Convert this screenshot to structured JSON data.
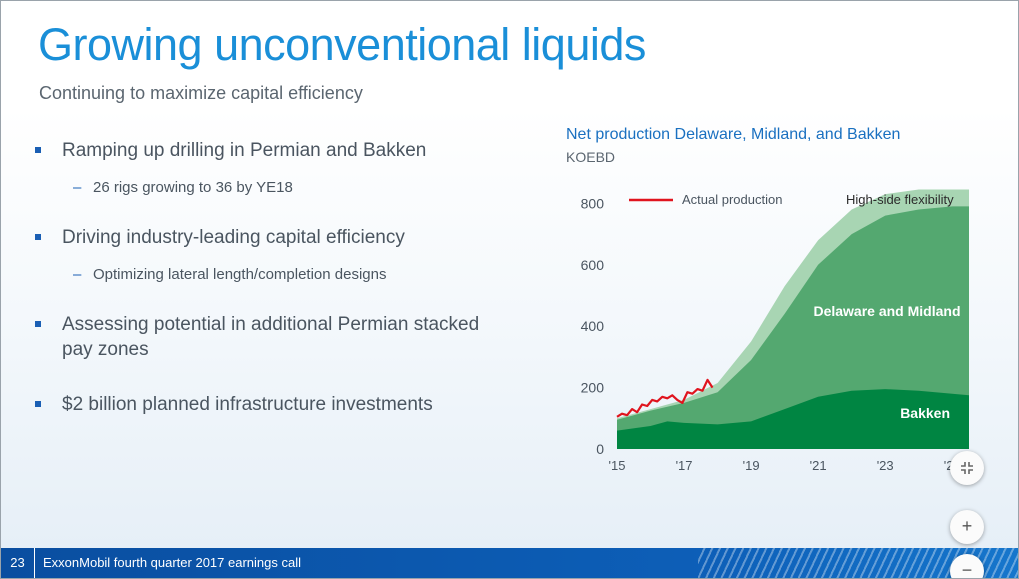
{
  "slide": {
    "title": "Growing unconventional liquids",
    "subtitle": "Continuing to maximize capital efficiency"
  },
  "bullets": [
    {
      "text": "Ramping up drilling in Permian and Bakken",
      "sub": "26 rigs growing to 36 by YE18"
    },
    {
      "text": "Driving industry-leading capital efficiency",
      "sub": "Optimizing lateral length/completion designs"
    },
    {
      "text": "Assessing potential in additional Permian stacked pay zones"
    },
    {
      "text": "$2 billion planned infrastructure investments"
    }
  ],
  "footer": {
    "page_number": "23",
    "text": "ExxonMobil fourth quarter 2017 earnings call"
  },
  "zoom_controls": {
    "collapse_icon": "collapse-arrows-icon",
    "zoom_in_icon": "plus-icon",
    "zoom_out_icon": "minus-icon"
  },
  "chart_data": {
    "type": "area",
    "title": "Net production Delaware, Midland, and Bakken",
    "unit": "KOEBD",
    "xlabel": "",
    "ylabel": "",
    "x_ticks": [
      "'15",
      "'17",
      "'19",
      "'21",
      "'23",
      "'25"
    ],
    "y_ticks": [
      0,
      200,
      400,
      600,
      800
    ],
    "ylim": [
      0,
      850
    ],
    "xlim": [
      2015,
      2025.5
    ],
    "legend": [
      "Actual production"
    ],
    "annotations": [
      "High-side flexibility",
      "Delaware and Midland",
      "Bakken"
    ],
    "colors": {
      "bakken": "#008542",
      "delaware_midland": "#54a870",
      "high_side": "#a8d5b3",
      "actual": "#e0141e"
    },
    "series": [
      {
        "name": "Bakken",
        "stack": "base",
        "x": [
          2015,
          2016,
          2016.5,
          2017,
          2018,
          2019,
          2020,
          2021,
          2022,
          2023,
          2024,
          2025,
          2025.5
        ],
        "y": [
          60,
          75,
          90,
          85,
          80,
          90,
          130,
          170,
          190,
          195,
          190,
          180,
          175
        ]
      },
      {
        "name": "Delaware and Midland",
        "stack": "cumulative_total",
        "x": [
          2015,
          2016,
          2017,
          2018,
          2019,
          2020,
          2021,
          2022,
          2023,
          2024,
          2025,
          2025.5
        ],
        "y": [
          95,
          125,
          150,
          185,
          290,
          440,
          600,
          700,
          760,
          780,
          790,
          790
        ]
      },
      {
        "name": "High-side flexibility",
        "stack": "cumulative_total",
        "x": [
          2015,
          2016,
          2017,
          2018,
          2019,
          2020,
          2021,
          2022,
          2023,
          2024,
          2025,
          2025.5
        ],
        "y": [
          100,
          130,
          160,
          215,
          350,
          530,
          680,
          780,
          830,
          845,
          845,
          845
        ]
      },
      {
        "name": "Actual production",
        "x": [
          2015.0,
          2015.15,
          2015.3,
          2015.45,
          2015.6,
          2015.75,
          2015.9,
          2016.05,
          2016.2,
          2016.35,
          2016.5,
          2016.65,
          2016.8,
          2016.95,
          2017.1,
          2017.25,
          2017.4,
          2017.55,
          2017.7,
          2017.85
        ],
        "y": [
          105,
          115,
          110,
          130,
          120,
          145,
          140,
          160,
          155,
          170,
          165,
          175,
          160,
          150,
          185,
          180,
          195,
          190,
          225,
          200
        ]
      }
    ]
  }
}
